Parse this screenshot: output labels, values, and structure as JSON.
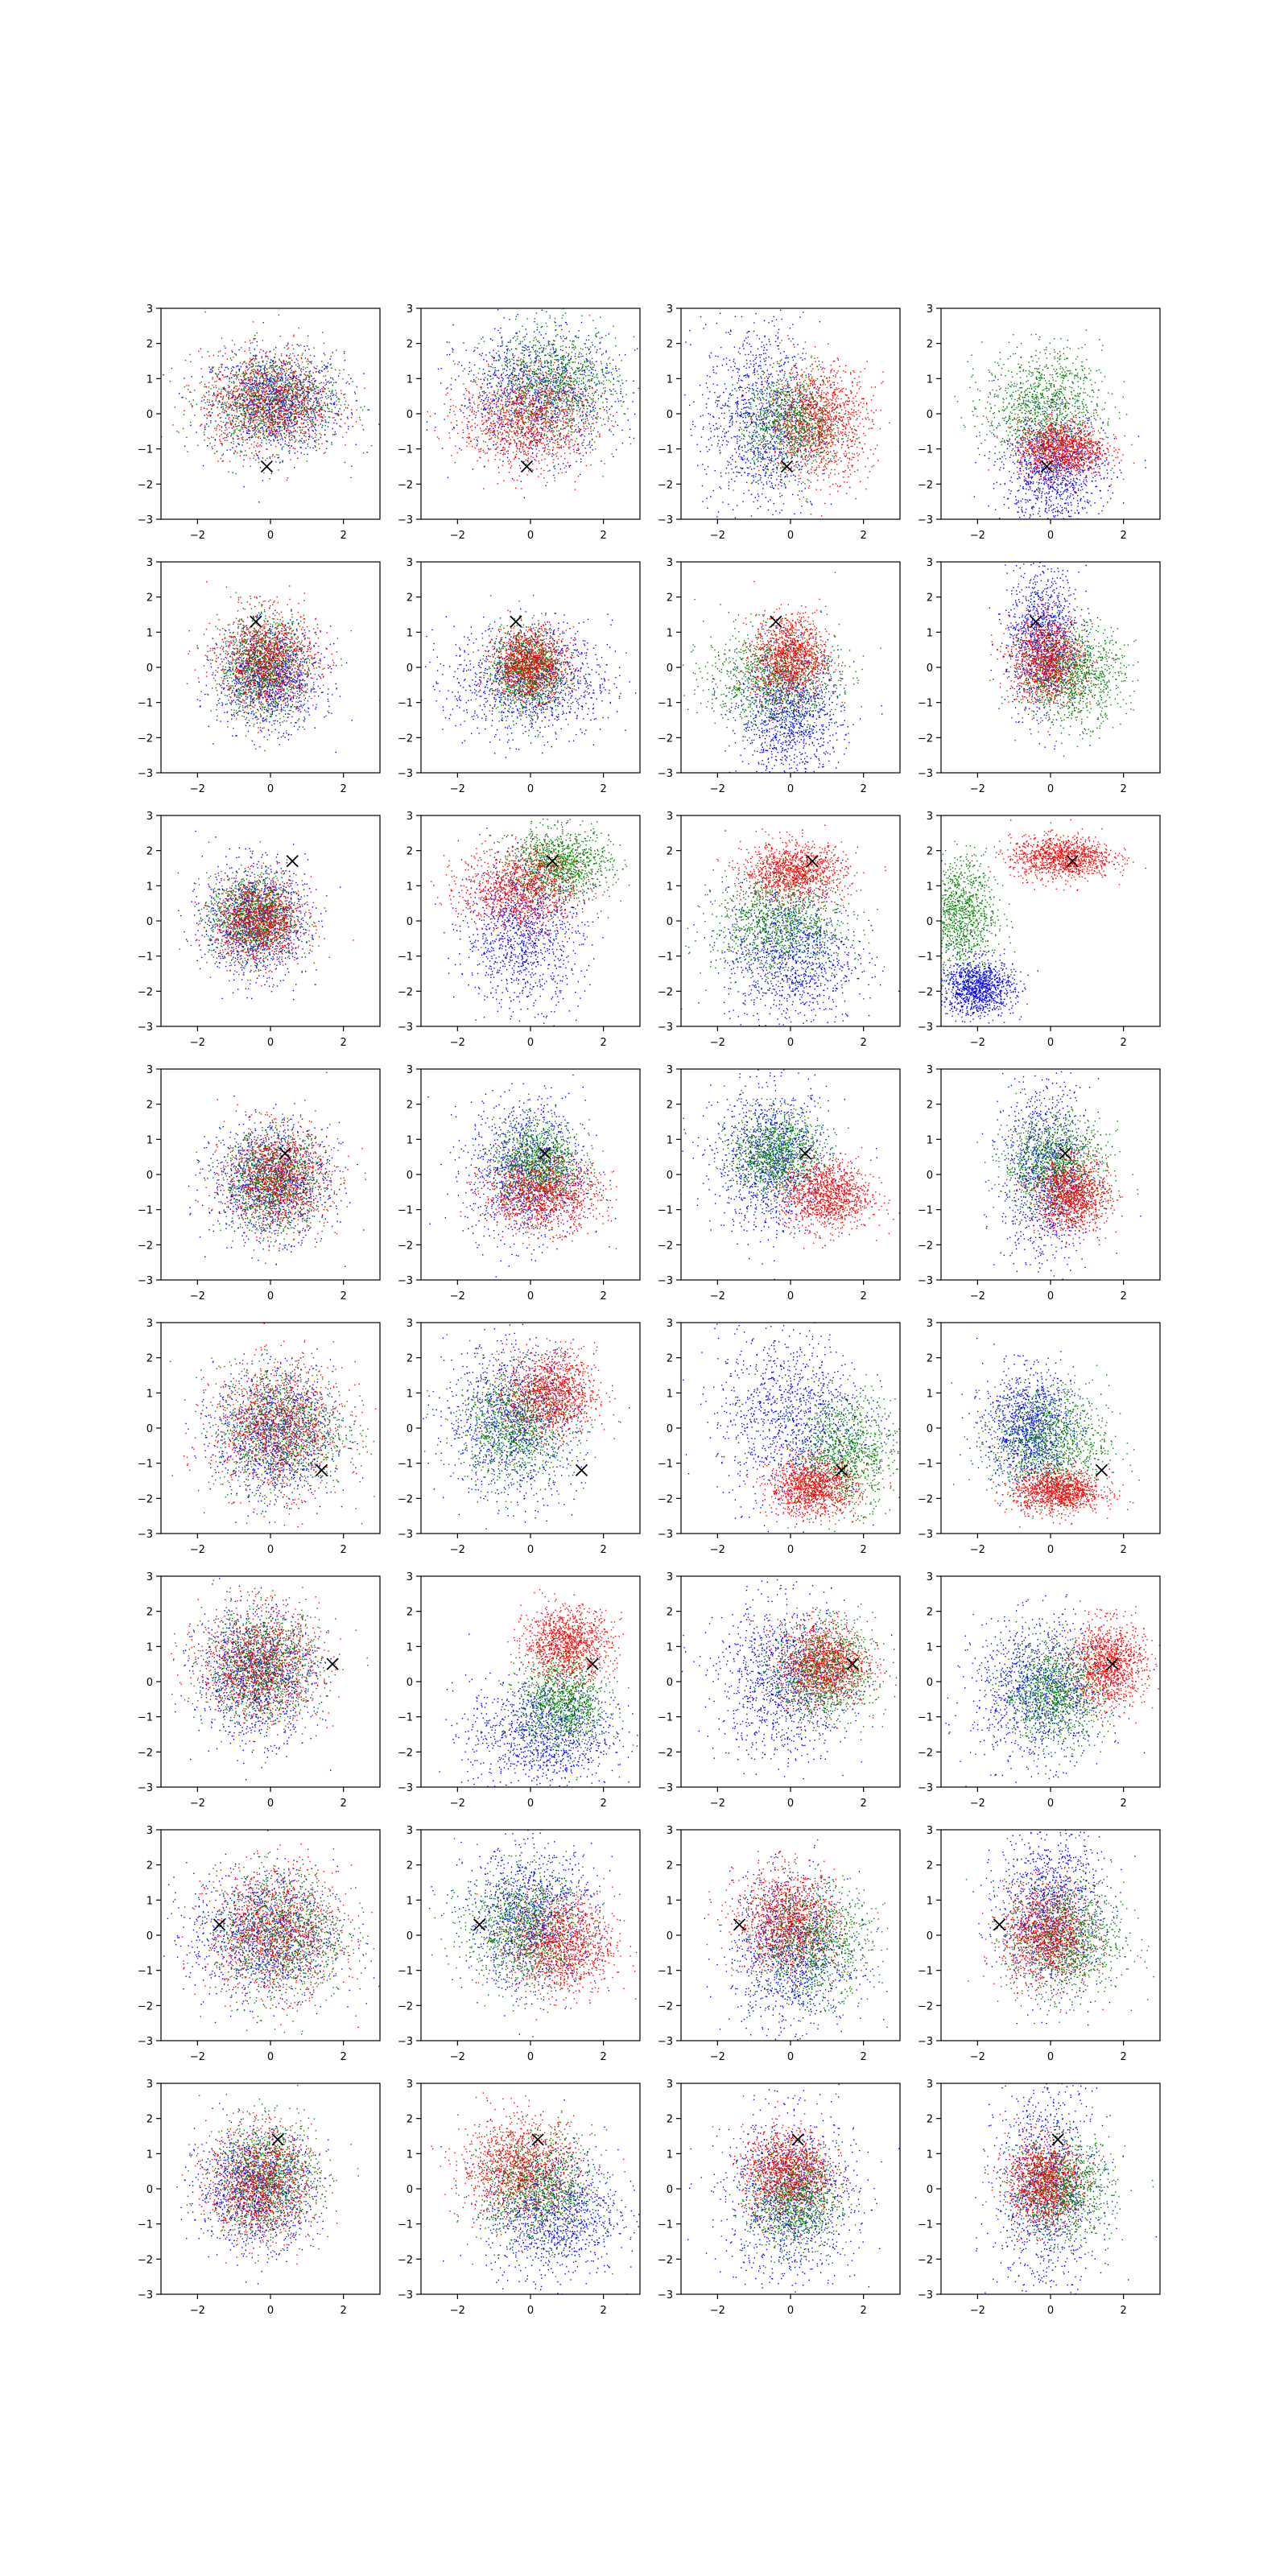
{
  "figure": {
    "rows": 8,
    "cols": 4,
    "description_free": true
  },
  "axes": {
    "xlim": [
      -3,
      3
    ],
    "ylim": [
      -3,
      3
    ],
    "xticks": [
      -2,
      0,
      2
    ],
    "yticks": [
      -3,
      -2,
      -1,
      0,
      1,
      2,
      3
    ],
    "xtick_labels": [
      "−2",
      "0",
      "2"
    ],
    "ytick_labels": [
      "−3",
      "−2",
      "−1",
      "0",
      "1",
      "2",
      "3"
    ],
    "grid": false
  },
  "colors": {
    "blue": "#0000ff",
    "green": "#008000",
    "red": "#ff0000",
    "marker": "#000000"
  },
  "chart_data": {
    "type": "scatter",
    "series_colors": [
      "blue",
      "green",
      "red"
    ],
    "rows": [
      {
        "marker": [
          -0.1,
          -1.5
        ],
        "panels": [
          {
            "blue": {
              "cx": 0.2,
              "cy": 0.3,
              "sx": 0.9,
              "sy": 0.7
            },
            "green": {
              "cx": 0.0,
              "cy": 0.4,
              "sx": 0.9,
              "sy": 0.7
            },
            "red": {
              "cx": -0.1,
              "cy": 0.3,
              "sx": 0.9,
              "sy": 0.7
            }
          },
          {
            "blue": {
              "cx": 0.2,
              "cy": 0.6,
              "sx": 1.1,
              "sy": 0.9
            },
            "green": {
              "cx": 0.6,
              "cy": 0.8,
              "sx": 0.9,
              "sy": 0.8
            },
            "red": {
              "cx": -0.1,
              "cy": -0.2,
              "sx": 0.9,
              "sy": 0.7
            }
          },
          {
            "blue": {
              "cx": -0.8,
              "cy": -0.2,
              "sx": 0.8,
              "sy": 1.4
            },
            "green": {
              "cx": 0.0,
              "cy": -0.3,
              "sx": 0.7,
              "sy": 0.7
            },
            "red": {
              "cx": 0.8,
              "cy": -0.2,
              "sx": 0.7,
              "sy": 0.8
            }
          },
          {
            "blue": {
              "cx": 0.1,
              "cy": -1.6,
              "sx": 0.7,
              "sy": 0.8
            },
            "green": {
              "cx": -0.2,
              "cy": 0.2,
              "sx": 0.8,
              "sy": 0.8
            },
            "red": {
              "cx": 0.3,
              "cy": -1.0,
              "sx": 0.6,
              "sy": 0.4
            }
          }
        ]
      },
      {
        "marker": [
          -0.4,
          1.3
        ],
        "panels": [
          {
            "blue": {
              "cx": 0.0,
              "cy": -0.3,
              "sx": 0.7,
              "sy": 0.7
            },
            "green": {
              "cx": -0.2,
              "cy": 0.0,
              "sx": 0.6,
              "sy": 0.7
            },
            "red": {
              "cx": -0.1,
              "cy": 0.2,
              "sx": 0.7,
              "sy": 0.7
            }
          },
          {
            "blue": {
              "cx": 0.0,
              "cy": -0.4,
              "sx": 1.1,
              "sy": 0.8
            },
            "green": {
              "cx": -0.1,
              "cy": -0.1,
              "sx": 0.5,
              "sy": 0.6
            },
            "red": {
              "cx": 0.0,
              "cy": 0.1,
              "sx": 0.5,
              "sy": 0.5
            }
          },
          {
            "blue": {
              "cx": 0.0,
              "cy": -1.4,
              "sx": 0.7,
              "sy": 0.9
            },
            "green": {
              "cx": -0.5,
              "cy": -0.3,
              "sx": 0.9,
              "sy": 0.7
            },
            "red": {
              "cx": 0.0,
              "cy": 0.3,
              "sx": 0.5,
              "sy": 0.6
            }
          },
          {
            "blue": {
              "cx": -0.2,
              "cy": 0.8,
              "sx": 0.5,
              "sy": 1.0
            },
            "green": {
              "cx": 0.6,
              "cy": -0.2,
              "sx": 0.7,
              "sy": 0.7
            },
            "red": {
              "cx": -0.1,
              "cy": 0.2,
              "sx": 0.5,
              "sy": 0.6
            }
          }
        ]
      },
      {
        "marker": [
          0.6,
          1.7
        ],
        "panels": [
          {
            "blue": {
              "cx": -0.4,
              "cy": 0.0,
              "sx": 0.7,
              "sy": 0.8
            },
            "green": {
              "cx": -0.5,
              "cy": 0.1,
              "sx": 0.6,
              "sy": 0.6
            },
            "red": {
              "cx": -0.3,
              "cy": 0.0,
              "sx": 0.6,
              "sy": 0.6
            }
          },
          {
            "blue": {
              "cx": -0.2,
              "cy": -0.4,
              "sx": 0.8,
              "sy": 1.0
            },
            "green": {
              "cx": 0.8,
              "cy": 1.6,
              "sx": 0.7,
              "sy": 0.5
            },
            "red": {
              "cx": -0.3,
              "cy": 0.9,
              "sx": 0.8,
              "sy": 0.6
            }
          },
          {
            "blue": {
              "cx": 0.0,
              "cy": -1.0,
              "sx": 0.9,
              "sy": 1.0
            },
            "green": {
              "cx": -0.3,
              "cy": -0.1,
              "sx": 0.9,
              "sy": 0.7
            },
            "red": {
              "cx": 0.1,
              "cy": 1.4,
              "sx": 0.7,
              "sy": 0.4
            }
          },
          {
            "blue": {
              "cx": -2.0,
              "cy": -1.9,
              "sx": 0.5,
              "sy": 0.4
            },
            "green": {
              "cx": -2.5,
              "cy": 0.2,
              "sx": 0.5,
              "sy": 0.8
            },
            "red": {
              "cx": 0.3,
              "cy": 1.8,
              "sx": 0.7,
              "sy": 0.3
            }
          }
        ]
      },
      {
        "marker": [
          0.4,
          0.6
        ],
        "panels": [
          {
            "blue": {
              "cx": 0.0,
              "cy": -0.2,
              "sx": 0.8,
              "sy": 0.8
            },
            "green": {
              "cx": 0.1,
              "cy": -0.2,
              "sx": 0.7,
              "sy": 0.7
            },
            "red": {
              "cx": 0.2,
              "cy": -0.1,
              "sx": 0.7,
              "sy": 0.7
            }
          },
          {
            "blue": {
              "cx": -0.1,
              "cy": 0.1,
              "sx": 0.8,
              "sy": 1.0
            },
            "green": {
              "cx": 0.2,
              "cy": 0.3,
              "sx": 0.6,
              "sy": 0.6
            },
            "red": {
              "cx": 0.3,
              "cy": -0.6,
              "sx": 0.8,
              "sy": 0.5
            }
          },
          {
            "blue": {
              "cx": -0.5,
              "cy": 0.4,
              "sx": 0.8,
              "sy": 1.0
            },
            "green": {
              "cx": -0.4,
              "cy": 0.6,
              "sx": 0.6,
              "sy": 0.6
            },
            "red": {
              "cx": 1.0,
              "cy": -0.6,
              "sx": 0.6,
              "sy": 0.5
            }
          },
          {
            "blue": {
              "cx": -0.1,
              "cy": 0.0,
              "sx": 0.6,
              "sy": 1.3
            },
            "green": {
              "cx": 0.1,
              "cy": 0.3,
              "sx": 0.7,
              "sy": 0.7
            },
            "red": {
              "cx": 0.6,
              "cy": -0.6,
              "sx": 0.5,
              "sy": 0.5
            }
          }
        ]
      },
      {
        "marker": [
          1.4,
          -1.2
        ],
        "panels": [
          {
            "blue": {
              "cx": 0.1,
              "cy": -0.2,
              "sx": 0.8,
              "sy": 0.9
            },
            "green": {
              "cx": 0.3,
              "cy": 0.0,
              "sx": 0.9,
              "sy": 0.9
            },
            "red": {
              "cx": 0.2,
              "cy": 0.0,
              "sx": 0.9,
              "sy": 0.9
            }
          },
          {
            "blue": {
              "cx": -0.5,
              "cy": 0.2,
              "sx": 0.9,
              "sy": 1.1
            },
            "green": {
              "cx": -0.4,
              "cy": 0.1,
              "sx": 0.8,
              "sy": 0.8
            },
            "red": {
              "cx": 0.6,
              "cy": 1.0,
              "sx": 0.6,
              "sy": 0.6
            }
          },
          {
            "blue": {
              "cx": 0.0,
              "cy": 0.3,
              "sx": 1.0,
              "sy": 1.2
            },
            "green": {
              "cx": 1.5,
              "cy": -0.7,
              "sx": 0.7,
              "sy": 0.8
            },
            "red": {
              "cx": 0.6,
              "cy": -1.7,
              "sx": 0.6,
              "sy": 0.4
            }
          },
          {
            "blue": {
              "cx": -0.6,
              "cy": 0.0,
              "sx": 0.6,
              "sy": 0.8
            },
            "green": {
              "cx": 0.0,
              "cy": -0.4,
              "sx": 0.8,
              "sy": 0.8
            },
            "red": {
              "cx": 0.2,
              "cy": -1.8,
              "sx": 0.6,
              "sy": 0.3
            }
          }
        ]
      },
      {
        "marker": [
          1.7,
          0.5
        ],
        "panels": [
          {
            "blue": {
              "cx": -0.4,
              "cy": 0.2,
              "sx": 0.8,
              "sy": 0.9
            },
            "green": {
              "cx": -0.2,
              "cy": 0.4,
              "sx": 0.8,
              "sy": 0.8
            },
            "red": {
              "cx": -0.3,
              "cy": 0.5,
              "sx": 0.8,
              "sy": 0.8
            }
          },
          {
            "blue": {
              "cx": 0.3,
              "cy": -1.5,
              "sx": 1.0,
              "sy": 0.8
            },
            "green": {
              "cx": 0.9,
              "cy": -0.6,
              "sx": 0.6,
              "sy": 0.7
            },
            "red": {
              "cx": 1.0,
              "cy": 1.1,
              "sx": 0.6,
              "sy": 0.5
            }
          },
          {
            "blue": {
              "cx": -0.2,
              "cy": 0.0,
              "sx": 0.9,
              "sy": 1.1
            },
            "green": {
              "cx": 0.9,
              "cy": 0.3,
              "sx": 0.7,
              "sy": 0.7
            },
            "red": {
              "cx": 0.9,
              "cy": 0.5,
              "sx": 0.6,
              "sy": 0.6
            }
          },
          {
            "blue": {
              "cx": -0.3,
              "cy": -0.3,
              "sx": 0.9,
              "sy": 1.0
            },
            "green": {
              "cx": 0.1,
              "cy": -0.3,
              "sx": 0.7,
              "sy": 0.7
            },
            "red": {
              "cx": 1.6,
              "cy": 0.5,
              "sx": 0.5,
              "sy": 0.6
            }
          }
        ]
      },
      {
        "marker": [
          -1.4,
          0.3
        ],
        "panels": [
          {
            "blue": {
              "cx": -0.2,
              "cy": 0.0,
              "sx": 1.0,
              "sy": 0.9
            },
            "green": {
              "cx": 0.3,
              "cy": 0.0,
              "sx": 0.9,
              "sy": 0.9
            },
            "red": {
              "cx": 0.1,
              "cy": 0.1,
              "sx": 0.9,
              "sy": 0.9
            }
          },
          {
            "blue": {
              "cx": 0.0,
              "cy": 0.5,
              "sx": 0.9,
              "sy": 1.0
            },
            "green": {
              "cx": -0.2,
              "cy": 0.2,
              "sx": 0.8,
              "sy": 0.8
            },
            "red": {
              "cx": 0.9,
              "cy": -0.3,
              "sx": 0.7,
              "sy": 0.7
            }
          },
          {
            "blue": {
              "cx": 0.0,
              "cy": -0.5,
              "sx": 0.8,
              "sy": 1.1
            },
            "green": {
              "cx": 0.6,
              "cy": -0.2,
              "sx": 0.8,
              "sy": 0.8
            },
            "red": {
              "cx": -0.1,
              "cy": 0.4,
              "sx": 0.7,
              "sy": 0.7
            }
          },
          {
            "blue": {
              "cx": 0.0,
              "cy": 0.8,
              "sx": 0.7,
              "sy": 1.2
            },
            "green": {
              "cx": 0.4,
              "cy": -0.1,
              "sx": 0.8,
              "sy": 0.8
            },
            "red": {
              "cx": -0.1,
              "cy": 0.0,
              "sx": 0.6,
              "sy": 0.7
            }
          }
        ]
      },
      {
        "marker": [
          0.2,
          1.4
        ],
        "panels": [
          {
            "blue": {
              "cx": -0.4,
              "cy": 0.0,
              "sx": 0.8,
              "sy": 0.8
            },
            "green": {
              "cx": -0.1,
              "cy": 0.3,
              "sx": 0.7,
              "sy": 0.8
            },
            "red": {
              "cx": -0.3,
              "cy": 0.1,
              "sx": 0.7,
              "sy": 0.8
            }
          },
          {
            "blue": {
              "cx": 0.6,
              "cy": -0.7,
              "sx": 0.9,
              "sy": 0.9
            },
            "green": {
              "cx": 0.2,
              "cy": 0.0,
              "sx": 0.8,
              "sy": 0.8
            },
            "red": {
              "cx": -0.3,
              "cy": 0.6,
              "sx": 0.8,
              "sy": 0.7
            }
          },
          {
            "blue": {
              "cx": 0.0,
              "cy": -0.3,
              "sx": 0.9,
              "sy": 1.2
            },
            "green": {
              "cx": 0.1,
              "cy": -0.3,
              "sx": 0.6,
              "sy": 0.7
            },
            "red": {
              "cx": -0.1,
              "cy": 0.5,
              "sx": 0.6,
              "sy": 0.6
            }
          },
          {
            "blue": {
              "cx": -0.1,
              "cy": 0.0,
              "sx": 0.7,
              "sy": 1.5
            },
            "green": {
              "cx": 0.3,
              "cy": 0.0,
              "sx": 0.7,
              "sy": 0.7
            },
            "red": {
              "cx": -0.2,
              "cy": 0.2,
              "sx": 0.5,
              "sy": 0.6
            }
          }
        ]
      }
    ]
  }
}
